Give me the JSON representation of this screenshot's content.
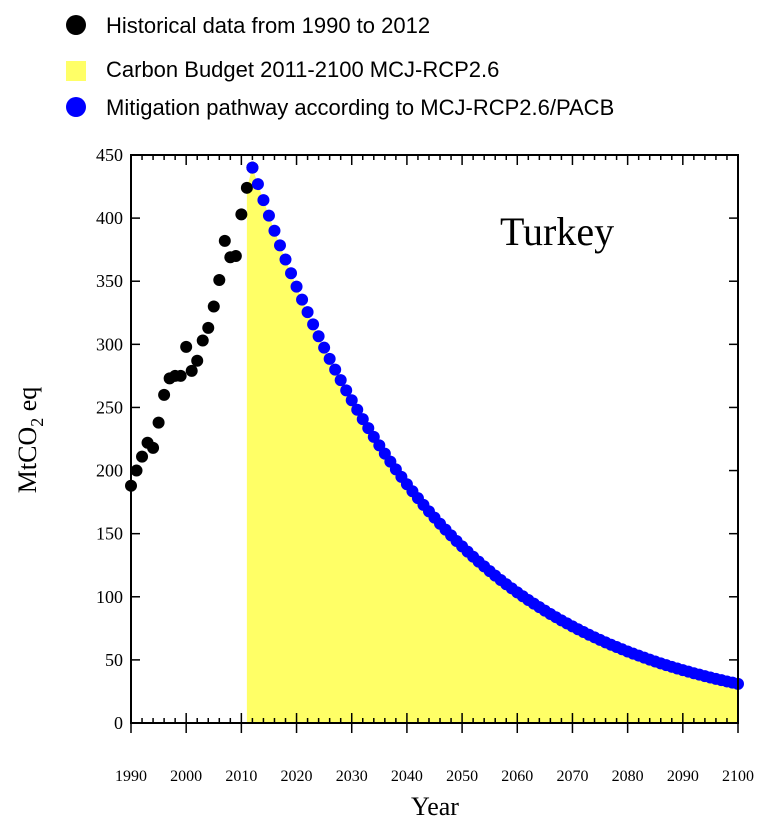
{
  "legend": {
    "items": [
      {
        "marker": "dot",
        "color": "#000000",
        "label": "Historical data from 1990 to 2012"
      },
      {
        "marker": "square",
        "color": "#ffff66",
        "label": "Carbon Budget 2011-2100 MCJ-RCP2.6"
      },
      {
        "marker": "dot",
        "color": "#0000ff",
        "label": "Mitigation pathway according to MCJ-RCP2.6/PACB"
      }
    ]
  },
  "chart_data": {
    "type": "scatter",
    "title": "Turkey",
    "xlabel": "Year",
    "ylabel_main": "MtCO",
    "ylabel_sub": "2",
    "ylabel_tail": " eq",
    "xlim": [
      1990,
      2100
    ],
    "ylim": [
      0,
      450
    ],
    "xticks": [
      1990,
      2000,
      2010,
      2020,
      2030,
      2040,
      2050,
      2060,
      2070,
      2080,
      2090,
      2100
    ],
    "yticks": [
      0,
      50,
      100,
      150,
      200,
      250,
      300,
      350,
      400,
      450
    ],
    "historical": {
      "name": "Historical data from 1990 to 2012",
      "color": "#000000",
      "x": [
        1990,
        1991,
        1992,
        1993,
        1994,
        1995,
        1996,
        1997,
        1998,
        1999,
        2000,
        2001,
        2002,
        2003,
        2004,
        2005,
        2006,
        2007,
        2008,
        2009,
        2010,
        2011,
        2012
      ],
      "y": [
        188,
        200,
        211,
        222,
        218,
        238,
        260,
        273,
        275,
        275,
        298,
        279,
        287,
        303,
        313,
        330,
        351,
        382,
        369,
        370,
        403,
        424,
        440
      ]
    },
    "budget_area": {
      "name": "Carbon Budget 2011-2100 MCJ-RCP2.6",
      "color": "#ffff66",
      "x_start": 2011,
      "x_end": 2100
    },
    "pathway": {
      "name": "Mitigation pathway according to MCJ-RCP2.6/PACB",
      "color": "#0000ff",
      "x_start": 2012,
      "x_end": 2100,
      "y_start": 440,
      "y_end": 31,
      "curve": "exponential"
    }
  }
}
